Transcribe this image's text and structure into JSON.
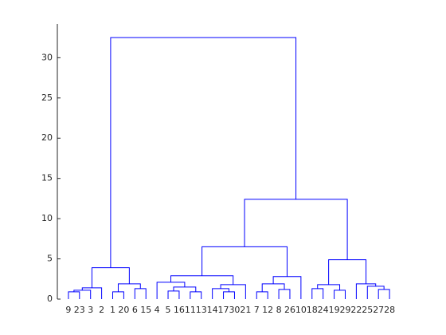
{
  "chart_data": {
    "type": "dendrogram",
    "categories": [
      "9",
      "23",
      "3",
      "2",
      "1",
      "20",
      "6",
      "15",
      "4",
      "5",
      "16",
      "11",
      "13",
      "14",
      "17",
      "30",
      "21",
      "7",
      "12",
      "8",
      "26",
      "10",
      "18",
      "24",
      "19",
      "29",
      "22",
      "25",
      "27",
      "28"
    ],
    "links": [
      [
        0,
        1,
        0.9
      ],
      [
        30,
        2,
        1.1
      ],
      [
        31,
        3,
        1.4
      ],
      [
        4,
        5,
        0.9
      ],
      [
        6,
        7,
        1.3
      ],
      [
        33,
        34,
        1.9
      ],
      [
        32,
        35,
        3.9
      ],
      [
        9,
        10,
        1.0
      ],
      [
        11,
        12,
        0.9
      ],
      [
        37,
        38,
        1.5
      ],
      [
        8,
        39,
        2.1
      ],
      [
        14,
        15,
        0.9
      ],
      [
        13,
        41,
        1.3
      ],
      [
        42,
        16,
        1.8
      ],
      [
        40,
        43,
        2.9
      ],
      [
        17,
        18,
        0.9
      ],
      [
        19,
        20,
        1.2
      ],
      [
        45,
        46,
        1.9
      ],
      [
        47,
        21,
        2.8
      ],
      [
        44,
        48,
        6.5
      ],
      [
        22,
        23,
        1.3
      ],
      [
        24,
        25,
        1.1
      ],
      [
        50,
        51,
        1.8
      ],
      [
        28,
        29,
        1.2
      ],
      [
        27,
        53,
        1.6
      ],
      [
        26,
        54,
        1.9
      ],
      [
        52,
        55,
        4.9
      ],
      [
        49,
        56,
        12.4
      ],
      [
        36,
        57,
        32.5
      ]
    ],
    "color": "#0000ff",
    "ylim": [
      0,
      34.2
    ],
    "yticks": [
      0,
      5,
      10,
      15,
      20,
      25,
      30
    ]
  }
}
